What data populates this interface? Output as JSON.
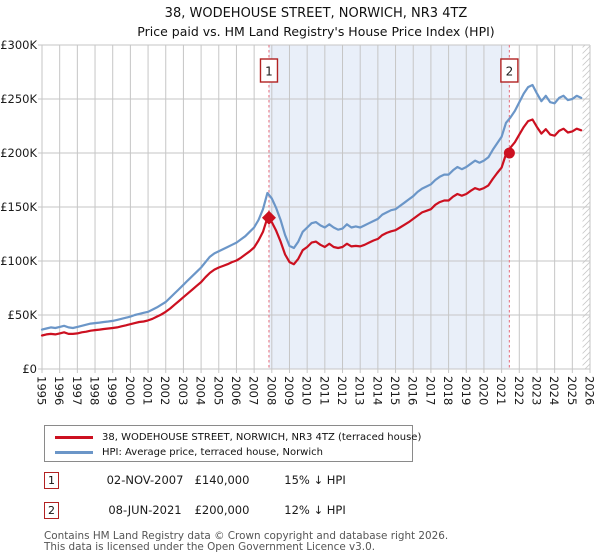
{
  "header": {
    "title": "38, WODEHOUSE STREET, NORWICH, NR3 4TZ",
    "subtitle": "Price paid vs. HM Land Registry's House Price Index (HPI)"
  },
  "chart_data": {
    "type": "line",
    "title": "38, WODEHOUSE STREET, NORWICH, NR3 4TZ",
    "subtitle": "Price paid vs. HM Land Registry's House Price Index (HPI)",
    "xlim": [
      1995,
      2026
    ],
    "ylim_k": [
      0,
      300
    ],
    "values_unit": "GBP thousands (£K)",
    "grid": true,
    "y_ticks": [
      {
        "value": 0,
        "label": "£0"
      },
      {
        "value": 50,
        "label": "£50K"
      },
      {
        "value": 100,
        "label": "£100K"
      },
      {
        "value": 150,
        "label": "£150K"
      },
      {
        "value": 200,
        "label": "£200K"
      },
      {
        "value": 250,
        "label": "£250K"
      },
      {
        "value": 300,
        "label": "£300K"
      }
    ],
    "x_tick_labels": [
      "1995",
      "1996",
      "1997",
      "1998",
      "1999",
      "2000",
      "2001",
      "2002",
      "2003",
      "2004",
      "2005",
      "2006",
      "2007",
      "2008",
      "2009",
      "2010",
      "2011",
      "2012",
      "2013",
      "2014",
      "2015",
      "2016",
      "2017",
      "2018",
      "2019",
      "2020",
      "2021",
      "2022",
      "2023",
      "2024",
      "2025",
      "2026"
    ],
    "shaded_span": [
      2007.84,
      2021.44
    ],
    "shade_color": "#e9eff9",
    "future_hatch_start": 2025.58,
    "x": {
      "start": 1995,
      "step": 0.25,
      "count": 123
    },
    "series": [
      {
        "name": "38, WODEHOUSE STREET, NORWICH, NR3 4TZ (terraced house)",
        "color": "#cc1020",
        "values": [
          31,
          32,
          32.5,
          32,
          33,
          34,
          32.5,
          32.5,
          33,
          34,
          34.5,
          35.5,
          36,
          36.5,
          37,
          37.5,
          38,
          38.5,
          39.5,
          40.5,
          41.5,
          42.5,
          43.5,
          44,
          45,
          46.5,
          48.5,
          50.5,
          53,
          56,
          59.5,
          63,
          66.5,
          70,
          73.5,
          77,
          80.5,
          85,
          89,
          92,
          94,
          95.5,
          97,
          99,
          100.5,
          103,
          106,
          109,
          112.5,
          119,
          127,
          140,
          136,
          128,
          118,
          106,
          99,
          97,
          102,
          110,
          113,
          117,
          118,
          115,
          113,
          116,
          113,
          112,
          113,
          116,
          113.5,
          114,
          113.5,
          115,
          117,
          119,
          120.5,
          124,
          126,
          127.5,
          128.5,
          131,
          133.5,
          136,
          139,
          142,
          145,
          146.5,
          148,
          152,
          154.5,
          156,
          156,
          159.5,
          162,
          160.5,
          162,
          165,
          167.5,
          166,
          167.5,
          170,
          176,
          181.5,
          186.5,
          199,
          205,
          210,
          217,
          224,
          229.5,
          231,
          224,
          218,
          222,
          217,
          216,
          220.5,
          222.5,
          219,
          220,
          222.5,
          221
        ]
      },
      {
        "name": "HPI: Average price, terraced house, Norwich",
        "color": "#6b96c8",
        "values": [
          36.5,
          37.5,
          38.5,
          38,
          39,
          40,
          38.5,
          38,
          39,
          40,
          41,
          42,
          42.5,
          43,
          43.5,
          44,
          44.5,
          45.5,
          46.5,
          47.5,
          48.5,
          50,
          51,
          52,
          53,
          55,
          57,
          59.5,
          62,
          66,
          70,
          74,
          78,
          82,
          86,
          90,
          94,
          99,
          104,
          107,
          109,
          111,
          113,
          115,
          117,
          120,
          123,
          127,
          131,
          138,
          148,
          163,
          158,
          149,
          138,
          124,
          114,
          112,
          118,
          127,
          131,
          135,
          136,
          133,
          131,
          134,
          131,
          129,
          130,
          134,
          131,
          132,
          131,
          133,
          135,
          137,
          139,
          143,
          145,
          147,
          148,
          151,
          154,
          157,
          160,
          164,
          167,
          169,
          171,
          175,
          178,
          180,
          180,
          184,
          187,
          185,
          187,
          190,
          193,
          191,
          193,
          196,
          203,
          209,
          215,
          228,
          233,
          239,
          247,
          255,
          261,
          263,
          255,
          248,
          253,
          247,
          246,
          251,
          253,
          249,
          250,
          253,
          251
        ]
      }
    ],
    "sales": [
      {
        "label": "1",
        "x": 2007.84,
        "value_k": 140,
        "marker": "diamond"
      },
      {
        "label": "2",
        "x": 2021.44,
        "value_k": 200,
        "marker": "circle"
      }
    ],
    "sale_line_color": "#e8808d",
    "marker_box_border": "#b22222",
    "legend_position": "bottom"
  },
  "legend": {
    "items": [
      {
        "label": "38, WODEHOUSE STREET, NORWICH, NR3 4TZ (terraced house)",
        "color": "#cc1020"
      },
      {
        "label": "HPI: Average price, terraced house, Norwich",
        "color": "#6b96c8"
      }
    ]
  },
  "annotations": [
    {
      "num": "1",
      "date": "02-NOV-2007",
      "price": "£140,000",
      "hpi": "15% ↓ HPI"
    },
    {
      "num": "2",
      "date": "08-JUN-2021",
      "price": "£200,000",
      "hpi": "12% ↓ HPI"
    }
  ],
  "footer": {
    "line1": "Contains HM Land Registry data © Crown copyright and database right 2026.",
    "line2": "This data is licensed under the Open Government Licence v3.0."
  }
}
